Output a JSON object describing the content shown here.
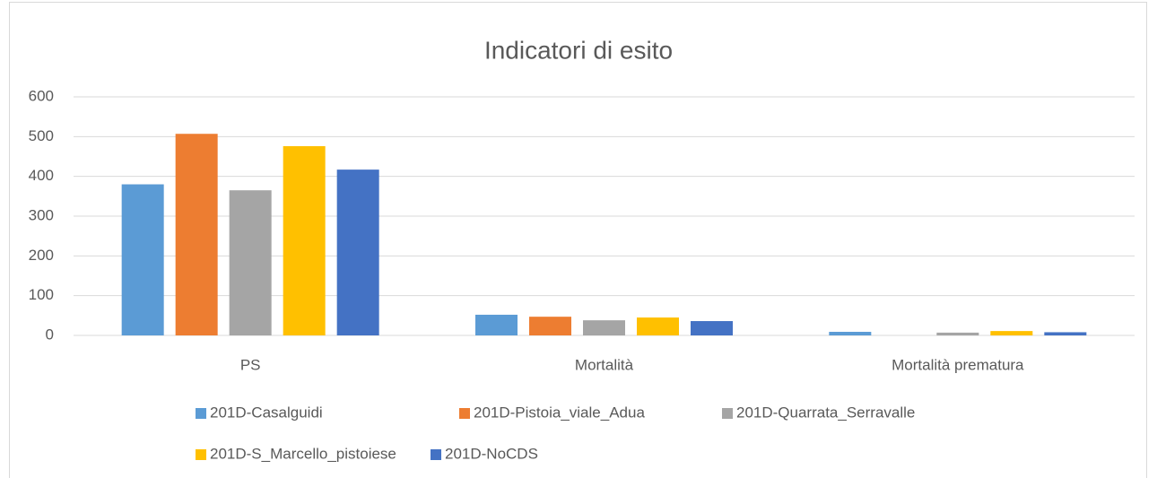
{
  "chart_data": {
    "type": "bar",
    "title": "Indicatori di esito",
    "categories": [
      "PS",
      "Mortalità",
      "Mortalità prematura"
    ],
    "series": [
      {
        "name": "201D-Casalguidi",
        "color": "#5b9bd5",
        "values": [
          380,
          52,
          9
        ]
      },
      {
        "name": "201D-Pistoia_viale_Adua",
        "color": "#ed7d31",
        "values": [
          507,
          47,
          0
        ]
      },
      {
        "name": "201D-Quarrata_Serravalle",
        "color": "#a5a5a5",
        "values": [
          365,
          38,
          7
        ]
      },
      {
        "name": "201D-S_Marcello_pistoiese",
        "color": "#ffc000",
        "values": [
          476,
          45,
          11
        ]
      },
      {
        "name": "201D-NoCDS",
        "color": "#4472c4",
        "values": [
          417,
          36,
          8
        ]
      }
    ],
    "ylim": [
      0,
      600
    ],
    "yticks": [
      0,
      100,
      200,
      300,
      400,
      500,
      600
    ],
    "grid": true,
    "legend": "bottom"
  }
}
